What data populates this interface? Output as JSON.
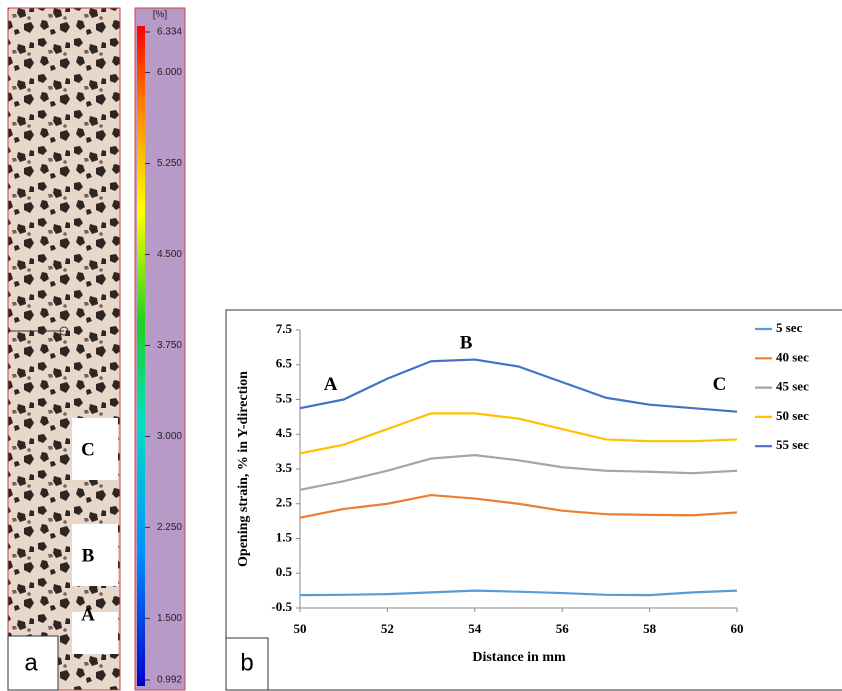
{
  "chart_data": [
    {
      "type": "colorbar",
      "unit": "[%]",
      "clim": [
        0.992,
        6.334
      ],
      "ticks": [
        6.334,
        {
          "value": 6,
          "label": "6.000"
        },
        {
          "value": 5.25,
          "label": "5.250"
        },
        {
          "value": 4.5,
          "label": "4.500"
        },
        {
          "value": 3.75,
          "label": "3.750"
        },
        {
          "value": 3,
          "label": "3.000"
        },
        {
          "value": 2.25,
          "label": "2.250"
        },
        {
          "value": 1.5,
          "label": "1.500"
        },
        0.992
      ],
      "point_labels": [
        "C",
        "B",
        "A"
      ],
      "panel_label": "a"
    },
    {
      "type": "line",
      "x_label": "Distance in mm",
      "y_label": "Opening strain, % in Y-direction",
      "x": [
        50,
        51,
        52,
        53,
        54,
        55,
        56,
        57,
        58,
        59,
        60
      ],
      "xlim": [
        50,
        60
      ],
      "xticks": [
        50,
        52,
        54,
        56,
        58,
        60
      ],
      "ylim": [
        -0.5,
        7.5
      ],
      "yticks": [
        -0.5,
        0.5,
        1.5,
        2.5,
        3.5,
        4.5,
        5.5,
        6.5,
        7.5
      ],
      "series": [
        {
          "name": "5 sec",
          "color": "#5b9bd5",
          "values": [
            -0.13,
            -0.12,
            -0.1,
            -0.05,
            0,
            -0.03,
            -0.07,
            -0.12,
            -0.13,
            -0.05,
            0
          ]
        },
        {
          "name": "40 sec",
          "color": "#ed7d31",
          "values": [
            2.1,
            2.35,
            2.5,
            2.75,
            2.65,
            2.5,
            2.3,
            2.2,
            2.18,
            2.17,
            2.25
          ]
        },
        {
          "name": "45 sec",
          "color": "#a5a5a5",
          "values": [
            2.9,
            3.15,
            3.45,
            3.8,
            3.9,
            3.75,
            3.55,
            3.45,
            3.42,
            3.38,
            3.45
          ]
        },
        {
          "name": "50 sec",
          "color": "#ffc000",
          "values": [
            3.95,
            4.2,
            4.65,
            5.1,
            5.1,
            4.95,
            4.65,
            4.35,
            4.3,
            4.3,
            4.35
          ]
        },
        {
          "name": "55 sec",
          "color": "#4472c4",
          "values": [
            5.25,
            5.5,
            6.1,
            6.6,
            6.65,
            6.45,
            6.0,
            5.55,
            5.35,
            5.25,
            5.15
          ]
        }
      ],
      "annotations": [
        {
          "text": "A",
          "x": 50.7,
          "y": 5.9
        },
        {
          "text": "B",
          "x": 53.8,
          "y": 7.1
        },
        {
          "text": "C",
          "x": 59.6,
          "y": 5.9
        }
      ],
      "panel_label": "b"
    }
  ]
}
